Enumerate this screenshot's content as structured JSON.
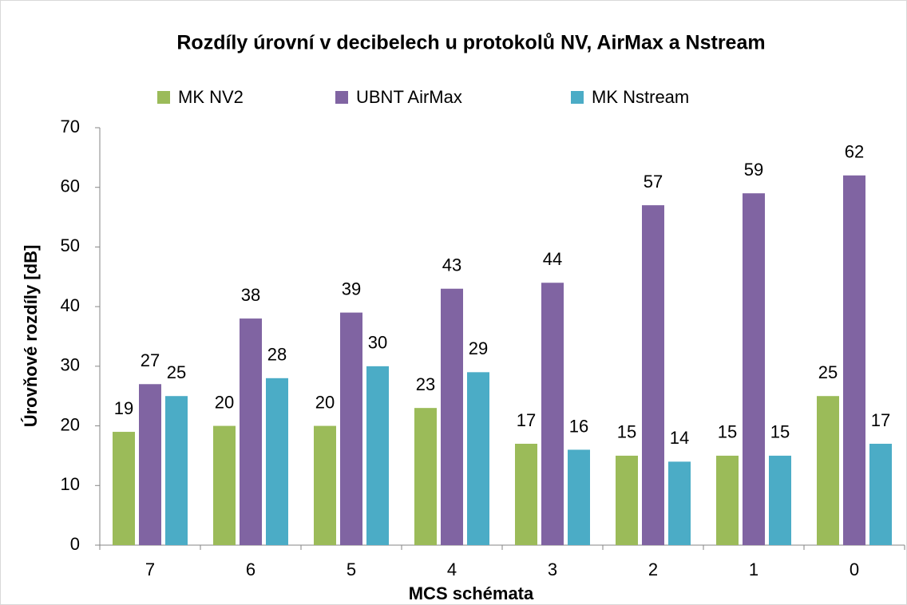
{
  "chart_data": {
    "type": "bar",
    "title": "Rozdíly úrovní v decibelech u protokolů NV, AirMax a Nstream",
    "x_label": "MCS schémata",
    "y_label": "Úrovňové rozdíly [dB]",
    "categories": [
      "7",
      "6",
      "5",
      "4",
      "3",
      "2",
      "1",
      "0"
    ],
    "series": [
      {
        "name": "MK NV2",
        "color": "#9bbb59",
        "values": [
          19,
          20,
          20,
          23,
          17,
          15,
          15,
          25
        ]
      },
      {
        "name": "UBNT AirMax",
        "color": "#8064a2",
        "values": [
          27,
          38,
          39,
          43,
          44,
          57,
          59,
          62
        ]
      },
      {
        "name": "MK Nstream",
        "color": "#4bacc6",
        "values": [
          25,
          28,
          30,
          29,
          16,
          14,
          15,
          17
        ]
      }
    ],
    "ylim": [
      0,
      70
    ],
    "yticks": [
      0,
      10,
      20,
      30,
      40,
      50,
      60,
      70
    ],
    "legend": "top",
    "grid": false
  }
}
